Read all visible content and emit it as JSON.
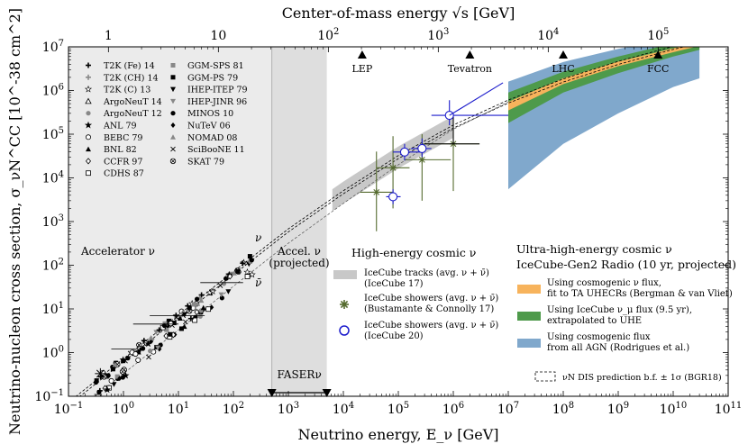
{
  "chart_data": {
    "type": "scatter",
    "title": "",
    "xlabel": "Neutrino energy, E_ν [GeV]",
    "ylabel": "Neutrino-nucleon cross section, σ_νN^CC [10^-38 cm^2]",
    "top_xlabel": "Center-of-mass energy √s [GeV]",
    "xscale": "log",
    "yscale": "log",
    "xlim": [
      0.1,
      100000000000.0
    ],
    "ylim": [
      0.1,
      10000000.0
    ],
    "x_ticks": [
      {
        "v": 0.1,
        "base": "10",
        "exp": "−1"
      },
      {
        "v": 1,
        "base": "10",
        "exp": "0"
      },
      {
        "v": 10,
        "base": "10",
        "exp": "1"
      },
      {
        "v": 100,
        "base": "10",
        "exp": "2"
      },
      {
        "v": 1000,
        "base": "10",
        "exp": "3"
      },
      {
        "v": 10000.0,
        "base": "10",
        "exp": "4"
      },
      {
        "v": 100000.0,
        "base": "10",
        "exp": "5"
      },
      {
        "v": 1000000.0,
        "base": "10",
        "exp": "6"
      },
      {
        "v": 10000000.0,
        "base": "10",
        "exp": "7"
      },
      {
        "v": 100000000.0,
        "base": "10",
        "exp": "8"
      },
      {
        "v": 1000000000.0,
        "base": "10",
        "exp": "9"
      },
      {
        "v": 10000000000.0,
        "base": "10",
        "exp": "10"
      },
      {
        "v": 100000000000.0,
        "base": "10",
        "exp": "11"
      }
    ],
    "y_ticks": [
      {
        "v": 0.1,
        "base": "10",
        "exp": "−1"
      },
      {
        "v": 1,
        "base": "10",
        "exp": "0"
      },
      {
        "v": 10,
        "base": "10",
        "exp": "1"
      },
      {
        "v": 100,
        "base": "10",
        "exp": "2"
      },
      {
        "v": 1000,
        "base": "10",
        "exp": "3"
      },
      {
        "v": 10000.0,
        "base": "10",
        "exp": "4"
      },
      {
        "v": 100000.0,
        "base": "10",
        "exp": "5"
      },
      {
        "v": 1000000.0,
        "base": "10",
        "exp": "6"
      },
      {
        "v": 10000000.0,
        "base": "10",
        "exp": "7"
      }
    ],
    "top_ticks": [
      {
        "sqrt_s": 1,
        "label": "1",
        "cross": "0"
      },
      {
        "sqrt_s": 10,
        "label": "10",
        "cross": "1"
      },
      {
        "sqrt_s": 100,
        "label": "10",
        "exp": "2"
      },
      {
        "sqrt_s": 1000,
        "label": "10",
        "exp": "3"
      },
      {
        "sqrt_s": 10000,
        "label": "10",
        "exp": "4"
      },
      {
        "sqrt_s": 100000,
        "label": "10",
        "exp": "5"
      }
    ],
    "colliders": [
      {
        "name": "LEP",
        "e": 22000.0
      },
      {
        "name": "Tevatron",
        "e": 2000000.0
      },
      {
        "name": "LHC",
        "e": 100000000.0
      },
      {
        "name": "FCC",
        "e": 5300000000.0
      }
    ],
    "regions": {
      "accelerator": {
        "label": "Accelerator ν",
        "xmin": 0.1,
        "xmax": 500
      },
      "accel_projected": {
        "label1": "Accel. ν",
        "label2": "(projected)",
        "xmin": 500,
        "xmax": 5000
      },
      "faser": {
        "label": "FASERν",
        "xmin": 500,
        "xmax": 5000
      }
    },
    "nu_labels": {
      "nu": "ν",
      "nubar": "ν̄"
    },
    "accelerator_legend": {
      "col1": [
        {
          "label": "T2K (Fe) 14",
          "marker": "plus-bold"
        },
        {
          "label": "T2K (CH) 14",
          "marker": "plus-gray"
        },
        {
          "label": "T2K (C) 13",
          "marker": "star-open"
        },
        {
          "label": "ArgoNeuT 14",
          "marker": "tri-open"
        },
        {
          "label": "ArgoNeuT 12",
          "marker": "circle-gray"
        },
        {
          "label": "ANL 79",
          "marker": "star-filled"
        },
        {
          "label": "BEBC 79",
          "marker": "circle-open"
        },
        {
          "label": "BNL 82",
          "marker": "tri-filled"
        },
        {
          "label": "CCFR 97",
          "marker": "diamond-open"
        },
        {
          "label": "CDHS 87",
          "marker": "square-open"
        }
      ],
      "col2": [
        {
          "label": "GGM-SPS 81",
          "marker": "square-gray"
        },
        {
          "label": "GGM-PS 79",
          "marker": "square-filled"
        },
        {
          "label": "IHEP-ITEP 79",
          "marker": "tridown-filled"
        },
        {
          "label": "IHEP-JINR 96",
          "marker": "tridown-gray"
        },
        {
          "label": "MINOS 10",
          "marker": "circle-filled"
        },
        {
          "label": "NuTeV 06",
          "marker": "diamond-filled"
        },
        {
          "label": "NOMAD 08",
          "marker": "tri-gray"
        },
        {
          "label": "SciBooNE 11",
          "marker": "cross"
        },
        {
          "label": "SKAT 79",
          "marker": "circle-cross"
        }
      ]
    },
    "hecnu": {
      "title": "High-energy cosmic ν",
      "entries": [
        {
          "line1": "IceCube tracks (avg. ν + ν̄)",
          "line2": "(IceCube 17)"
        },
        {
          "line1": "IceCube showers (avg. ν + ν̄)",
          "line2": "(Bustamante & Connolly 17)"
        },
        {
          "line1": "IceCube showers (avg. ν + ν̄)",
          "line2": "(IceCube 20)"
        }
      ]
    },
    "uhe": {
      "title1": "Ultra-high-energy cosmic ν",
      "title2": "IceCube-Gen2 Radio (10 yr, projected)",
      "entries": [
        {
          "color": "#f7b35c",
          "line1": "Using cosmogenic ν flux,",
          "line2": "fit to TA UHECRs (Bergman & van Vliet)"
        },
        {
          "color": "#4e9a4b",
          "line1": "Using IceCube ν_μ flux (9.5 yr),",
          "line2": "extrapolated to UHE"
        },
        {
          "color": "#80a8cc",
          "line1": "Using cosmogenic flux",
          "line2": "from all AGN (Rodrigues et al.)"
        }
      ]
    },
    "dis_label": "νN DIS prediction b.f. ± 1σ (BGR18)",
    "theory_curve": [
      [
        0.1,
        0.067
      ],
      [
        1,
        0.67
      ],
      [
        10,
        6.7
      ],
      [
        100,
        66
      ],
      [
        1000,
        630
      ],
      [
        10000,
        4700
      ],
      [
        100000,
        30000
      ],
      [
        1000000.0,
        150000
      ],
      [
        10000000.0,
        560000
      ],
      [
        100000000.0,
        1700000
      ],
      [
        1000000000.0,
        4300000
      ],
      [
        10000000000.0,
        9500000
      ],
      [
        100000000000.0,
        19000000
      ]
    ],
    "nubar_curve": [
      [
        0.1,
        0.033
      ],
      [
        1,
        0.33
      ],
      [
        10,
        3.3
      ],
      [
        100,
        33
      ],
      [
        1000,
        320
      ],
      [
        10000,
        2600
      ],
      [
        100000,
        20000
      ],
      [
        1000000.0,
        130000
      ],
      [
        10000000.0,
        550000
      ]
    ],
    "icecube_tracks_band": {
      "x": [
        6300,
        980000
      ],
      "center": [
        6000,
        100000
      ]
    },
    "icecube_showers_bc": [
      {
        "x": 40000,
        "y": 4700,
        "xerr": [
          20000,
          80000
        ],
        "yerr": [
          600,
          40000
        ]
      },
      {
        "x": 80000,
        "y": 17000,
        "xerr": [
          40000,
          160000
        ],
        "yerr": [
          2000,
          90000
        ]
      },
      {
        "x": 270000,
        "y": 26000,
        "xerr": [
          130000,
          900000
        ],
        "yerr": [
          3000,
          100000
        ]
      },
      {
        "x": 1000000,
        "y": 60000,
        "xerr": [
          270000,
          3000000
        ],
        "yerr": [
          5000,
          300000
        ]
      }
    ],
    "icecube_showers_ic20": [
      {
        "x": 80000,
        "y": 3700,
        "xerr": [
          60000,
          110000
        ],
        "yerr": [
          2500,
          5500
        ]
      },
      {
        "x": 130000,
        "y": 39000,
        "xerr": [
          80000,
          300000
        ],
        "yerr": [
          25000,
          60000
        ]
      },
      {
        "x": 270000,
        "y": 47000,
        "xerr": [
          170000,
          400000
        ],
        "yerr": [
          30000,
          80000
        ]
      },
      {
        "x": 850000,
        "y": 270000,
        "xerr": [
          400000,
          10000000
        ],
        "yerr": [
          160000,
          600000
        ]
      }
    ],
    "gen2_bands": {
      "x": [
        10000000.0,
        100000000.0,
        1000000000.0,
        10000000000.0,
        30000000000.0
      ],
      "blue_lo": [
        5500,
        60000,
        300000,
        1200000,
        1900000
      ],
      "blue_hi": [
        1600000,
        4500000,
        9000000,
        15000000,
        20000000
      ],
      "green_lo": [
        180000,
        900000,
        2500000,
        6000000,
        8500000
      ],
      "green_hi": [
        900000,
        2700000,
        6000000,
        12000000,
        15000000
      ],
      "orange_lo": [
        350000,
        1400000,
        3600000,
        7500000,
        10500000
      ],
      "orange_hi": [
        550000,
        1900000,
        4600000,
        9200000,
        12500000
      ]
    }
  }
}
